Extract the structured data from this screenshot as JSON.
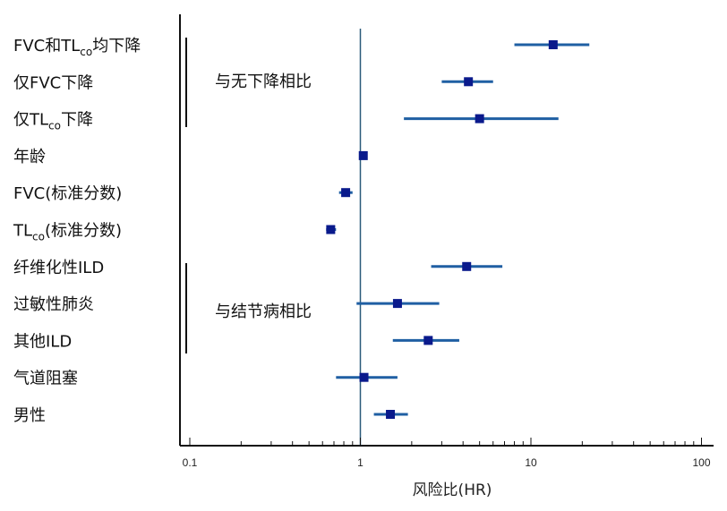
{
  "chart_data": {
    "type": "scatter",
    "subtype": "forest-plot",
    "xlabel": "风险比(HR)",
    "xscale": "log",
    "xlim": [
      0.1,
      100
    ],
    "xticks": [
      {
        "value": 0.1,
        "label": "0.1"
      },
      {
        "value": 1,
        "label": "1"
      },
      {
        "value": 10,
        "label": "10"
      },
      {
        "value": 100,
        "label": "100"
      }
    ],
    "reference_line": 1,
    "colors": {
      "marker": "#0a1a8c",
      "ci": "#1f5fa3",
      "reference": "#2a5a7a",
      "axis": "#111111"
    },
    "groups": [
      {
        "label": "与无下降相比",
        "rows": [
          0,
          1,
          2
        ]
      },
      {
        "label": "与结节病相比",
        "rows": [
          6,
          7,
          8
        ]
      }
    ],
    "rows": [
      {
        "label": "FVC和TL",
        "sub": "co",
        "after": "均下降",
        "hr": 13.5,
        "ci": [
          8.0,
          22.0
        ]
      },
      {
        "label": "仅FVC下降",
        "sub": "",
        "after": "",
        "hr": 4.3,
        "ci": [
          3.0,
          6.0
        ]
      },
      {
        "label": "仅TL",
        "sub": "co",
        "after": "下降",
        "hr": 5.0,
        "ci": [
          1.8,
          14.5
        ]
      },
      {
        "label": "年龄",
        "sub": "",
        "after": "",
        "hr": 1.04,
        "ci": [
          1.01,
          1.07
        ]
      },
      {
        "label": "FVC(标准分数)",
        "sub": "",
        "after": "",
        "hr": 0.82,
        "ci": [
          0.75,
          0.9
        ]
      },
      {
        "label": "TL",
        "sub": "co",
        "after": "(标准分数)",
        "hr": 0.67,
        "ci": [
          0.63,
          0.72
        ]
      },
      {
        "label": "纤维化性ILD",
        "sub": "",
        "after": "",
        "hr": 4.2,
        "ci": [
          2.6,
          6.8
        ]
      },
      {
        "label": "过敏性肺炎",
        "sub": "",
        "after": "",
        "hr": 1.65,
        "ci": [
          0.95,
          2.9
        ]
      },
      {
        "label": "其他ILD",
        "sub": "",
        "after": "",
        "hr": 2.5,
        "ci": [
          1.55,
          3.8
        ]
      },
      {
        "label": "气道阻塞",
        "sub": "",
        "after": "",
        "hr": 1.05,
        "ci": [
          0.72,
          1.65
        ]
      },
      {
        "label": "男性",
        "sub": "",
        "after": "",
        "hr": 1.5,
        "ci": [
          1.2,
          1.9
        ]
      }
    ]
  }
}
